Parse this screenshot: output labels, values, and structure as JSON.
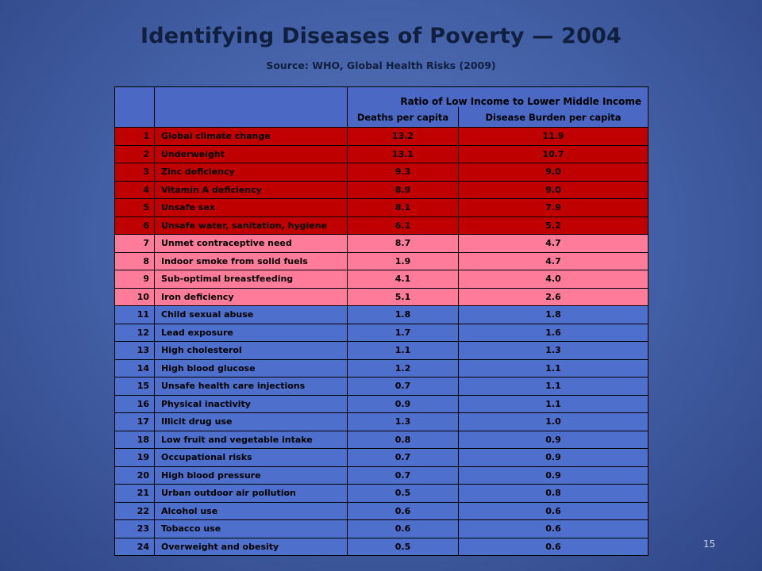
{
  "slide": {
    "title": "Identifying Diseases of Poverty — 2004",
    "subtitle": "Source: WHO, Global Health Risks (2009)",
    "page_number": "15"
  },
  "table": {
    "group_header": "Ratio of Low Income to Lower Middle Income",
    "col_deaths": "Deaths per capita",
    "col_burden": "Disease Burden per capita",
    "rows": [
      {
        "rank": "1",
        "name": "Global climate change",
        "deaths": "13.2",
        "burden": "11.9",
        "tier": "red"
      },
      {
        "rank": "2",
        "name": "Underweight",
        "deaths": "13.1",
        "burden": "10.7",
        "tier": "red"
      },
      {
        "rank": "3",
        "name": "Zinc deficiency",
        "deaths": "9.3",
        "burden": "9.0",
        "tier": "red"
      },
      {
        "rank": "4",
        "name": "Vitamin A deficiency",
        "deaths": "8.9",
        "burden": "9.0",
        "tier": "red"
      },
      {
        "rank": "5",
        "name": "Unsafe sex",
        "deaths": "8.1",
        "burden": "7.9",
        "tier": "red"
      },
      {
        "rank": "6",
        "name": "Unsafe water, sanitation, hygiene",
        "deaths": "6.1",
        "burden": "5.2",
        "tier": "red"
      },
      {
        "rank": "7",
        "name": "Unmet contraceptive need",
        "deaths": "8.7",
        "burden": "4.7",
        "tier": "pink"
      },
      {
        "rank": "8",
        "name": "Indoor smoke from solid fuels",
        "deaths": "1.9",
        "burden": "4.7",
        "tier": "pink"
      },
      {
        "rank": "9",
        "name": "Sub-optimal breastfeeding",
        "deaths": "4.1",
        "burden": "4.0",
        "tier": "pink"
      },
      {
        "rank": "10",
        "name": "Iron deficiency",
        "deaths": "5.1",
        "burden": "2.6",
        "tier": "pink"
      },
      {
        "rank": "11",
        "name": "Child sexual abuse",
        "deaths": "1.8",
        "burden": "1.8",
        "tier": "blue"
      },
      {
        "rank": "12",
        "name": "Lead exposure",
        "deaths": "1.7",
        "burden": "1.6",
        "tier": "blue"
      },
      {
        "rank": "13",
        "name": "High cholesterol",
        "deaths": "1.1",
        "burden": "1.3",
        "tier": "blue"
      },
      {
        "rank": "14",
        "name": "High blood glucose",
        "deaths": "1.2",
        "burden": "1.1",
        "tier": "blue"
      },
      {
        "rank": "15",
        "name": "Unsafe health care injections",
        "deaths": "0.7",
        "burden": "1.1",
        "tier": "blue"
      },
      {
        "rank": "16",
        "name": "Physical inactivity",
        "deaths": "0.9",
        "burden": "1.1",
        "tier": "blue"
      },
      {
        "rank": "17",
        "name": "Illicit drug use",
        "deaths": "1.3",
        "burden": "1.0",
        "tier": "blue"
      },
      {
        "rank": "18",
        "name": "Low fruit and vegetable  intake",
        "deaths": "0.8",
        "burden": "0.9",
        "tier": "blue"
      },
      {
        "rank": "19",
        "name": "Occupational risks",
        "deaths": "0.7",
        "burden": "0.9",
        "tier": "blue"
      },
      {
        "rank": "20",
        "name": "High blood pressure",
        "deaths": "0.7",
        "burden": "0.9",
        "tier": "blue"
      },
      {
        "rank": "21",
        "name": "Urban outdoor air pollution",
        "deaths": "0.5",
        "burden": "0.8",
        "tier": "blue"
      },
      {
        "rank": "22",
        "name": "Alcohol use",
        "deaths": "0.6",
        "burden": "0.6",
        "tier": "blue"
      },
      {
        "rank": "23",
        "name": "Tobacco use",
        "deaths": "0.6",
        "burden": "0.6",
        "tier": "blue"
      },
      {
        "rank": "24",
        "name": "Overweight and obesity",
        "deaths": "0.5",
        "burden": "0.6",
        "tier": "blue"
      }
    ]
  },
  "colors": {
    "tier_red": "#c00000",
    "tier_pink": "#ff7b9a",
    "tier_blue": "#4e6fcb",
    "header": "#4a68c4"
  }
}
